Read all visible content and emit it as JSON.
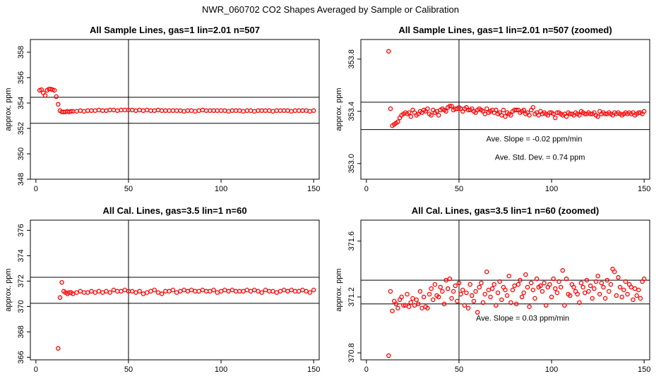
{
  "title": "NWR_060702  CO2 Shapes Averaged by Sample or Calibration",
  "chart_data": [
    {
      "type": "scatter",
      "title": "All Sample Lines, gas=1 lin=2.01 n=507",
      "ylabel": "approx. ppm",
      "xlim": [
        -3,
        153
      ],
      "ylim": [
        348,
        359
      ],
      "xticks": [
        "0",
        "50",
        "100",
        "150"
      ],
      "xtick_values": [
        0,
        50,
        100,
        150
      ],
      "yticks": [
        "348",
        "350",
        "352",
        "354",
        "356",
        "358"
      ],
      "ytick_values": [
        348,
        350,
        352,
        354,
        356,
        358
      ],
      "hlines": [
        354.45,
        352.4
      ],
      "vline": 50,
      "marker_color": "#ff0000",
      "x": [
        2,
        3,
        4,
        5,
        6,
        7,
        8,
        9,
        10,
        11,
        12,
        13,
        14,
        15,
        16,
        17,
        18,
        19,
        20,
        22,
        24,
        26,
        28,
        30,
        32,
        34,
        36,
        38,
        40,
        42,
        44,
        46,
        48,
        50,
        52,
        54,
        56,
        58,
        60,
        62,
        64,
        66,
        68,
        70,
        72,
        74,
        76,
        78,
        80,
        82,
        84,
        86,
        88,
        90,
        92,
        94,
        96,
        98,
        100,
        102,
        104,
        106,
        108,
        110,
        112,
        114,
        116,
        118,
        120,
        122,
        124,
        126,
        128,
        130,
        132,
        134,
        136,
        138,
        140,
        142,
        144,
        146,
        148,
        150
      ],
      "y": [
        355.0,
        355.05,
        354.8,
        354.6,
        355.0,
        355.1,
        355.1,
        355.05,
        355.0,
        354.5,
        353.9,
        353.4,
        353.3,
        353.3,
        353.3,
        353.35,
        353.3,
        353.35,
        353.35,
        353.35,
        353.4,
        353.35,
        353.4,
        353.4,
        353.4,
        353.45,
        353.4,
        353.4,
        353.45,
        353.45,
        353.4,
        353.45,
        353.45,
        353.45,
        353.45,
        353.4,
        353.45,
        353.4,
        353.45,
        353.4,
        353.4,
        353.45,
        353.4,
        353.4,
        353.4,
        353.4,
        353.4,
        353.4,
        353.35,
        353.4,
        353.4,
        353.35,
        353.4,
        353.45,
        353.4,
        353.4,
        353.4,
        353.4,
        353.4,
        353.4,
        353.35,
        353.4,
        353.4,
        353.4,
        353.35,
        353.4,
        353.4,
        353.35,
        353.4,
        353.4,
        353.4,
        353.4,
        353.35,
        353.4,
        353.4,
        353.4,
        353.4,
        353.35,
        353.4,
        353.4,
        353.4,
        353.4,
        353.35,
        353.4
      ]
    },
    {
      "type": "scatter",
      "title": "All Sample Lines, gas=1 lin=2.01 n=507 (zoomed)",
      "ylabel": "approx. ppm",
      "xlim": [
        -3,
        153
      ],
      "ylim": [
        352.88,
        353.95
      ],
      "xticks": [
        "0",
        "50",
        "100",
        "150"
      ],
      "xtick_values": [
        0,
        50,
        100,
        150
      ],
      "yticks": [
        "353.0",
        "353.4",
        "353.8"
      ],
      "ytick_values": [
        353.0,
        353.4,
        353.8
      ],
      "hlines": [
        353.47,
        353.26
      ],
      "vline": 50,
      "marker_color": "#ff0000",
      "annotations": [
        "Ave. Slope =  -0.02  ppm/min",
        "Ave. Std. Dev. =  0.74  ppm"
      ],
      "x": [
        12,
        13,
        14,
        15,
        16,
        17,
        18,
        19,
        20,
        21,
        22,
        23,
        24,
        25,
        26,
        27,
        28,
        29,
        30,
        31,
        32,
        33,
        34,
        35,
        36,
        37,
        38,
        39,
        40,
        41,
        42,
        43,
        44,
        45,
        46,
        47,
        48,
        49,
        50,
        51,
        52,
        53,
        54,
        55,
        56,
        57,
        58,
        59,
        60,
        61,
        62,
        63,
        64,
        65,
        66,
        67,
        68,
        69,
        70,
        71,
        72,
        73,
        74,
        75,
        76,
        77,
        78,
        79,
        80,
        81,
        82,
        83,
        84,
        85,
        86,
        87,
        88,
        89,
        90,
        91,
        92,
        93,
        94,
        95,
        96,
        97,
        98,
        99,
        100,
        101,
        102,
        103,
        104,
        105,
        106,
        107,
        108,
        109,
        110,
        111,
        112,
        113,
        114,
        115,
        116,
        117,
        118,
        119,
        120,
        121,
        122,
        123,
        124,
        125,
        126,
        127,
        128,
        129,
        130,
        131,
        132,
        133,
        134,
        135,
        136,
        137,
        138,
        139,
        140,
        141,
        142,
        143,
        144,
        145,
        146,
        147,
        148,
        149,
        150
      ],
      "y": [
        353.86,
        353.42,
        353.29,
        353.3,
        353.31,
        353.32,
        353.35,
        353.37,
        353.38,
        353.39,
        353.38,
        353.39,
        353.36,
        353.41,
        353.39,
        353.37,
        353.38,
        353.4,
        353.39,
        353.41,
        353.4,
        353.42,
        353.38,
        353.37,
        353.41,
        353.39,
        353.4,
        353.37,
        353.41,
        353.42,
        353.41,
        353.4,
        353.43,
        353.44,
        353.44,
        353.41,
        353.42,
        353.42,
        353.43,
        353.42,
        353.4,
        353.42,
        353.43,
        353.41,
        353.41,
        353.42,
        353.4,
        353.39,
        353.41,
        353.42,
        353.41,
        353.4,
        353.38,
        353.42,
        353.39,
        353.4,
        353.41,
        353.39,
        353.41,
        353.38,
        353.39,
        353.37,
        353.41,
        353.36,
        353.39,
        353.38,
        353.37,
        353.4,
        353.41,
        353.41,
        353.41,
        353.39,
        353.4,
        353.41,
        353.38,
        353.39,
        353.37,
        353.41,
        353.43,
        353.38,
        353.39,
        353.37,
        353.4,
        353.38,
        353.39,
        353.38,
        353.37,
        353.39,
        353.39,
        353.38,
        353.35,
        353.39,
        353.39,
        353.38,
        353.37,
        353.38,
        353.36,
        353.39,
        353.38,
        353.38,
        353.37,
        353.39,
        353.38,
        353.37,
        353.4,
        353.39,
        353.38,
        353.38,
        353.39,
        353.38,
        353.38,
        353.39,
        353.37,
        353.36,
        353.4,
        353.38,
        353.39,
        353.38,
        353.38,
        353.39,
        353.38,
        353.37,
        353.39,
        353.38,
        353.39,
        353.38,
        353.37,
        353.38,
        353.39,
        353.38,
        353.39,
        353.38,
        353.39,
        353.37,
        353.38,
        353.39,
        353.39,
        353.38,
        353.4
      ]
    },
    {
      "type": "scatter",
      "title": "All Cal. Lines, gas=3.5 lin=1 n=60",
      "ylabel": "approx. ppm",
      "xlim": [
        -3,
        153
      ],
      "ylim": [
        365.8,
        376.8
      ],
      "xticks": [
        "0",
        "50",
        "100",
        "150"
      ],
      "xtick_values": [
        0,
        50,
        100,
        150
      ],
      "yticks": [
        "366",
        "368",
        "370",
        "372",
        "374",
        "376"
      ],
      "ytick_values": [
        366,
        368,
        370,
        372,
        374,
        376
      ],
      "hlines": [
        372.3,
        370.25
      ],
      "vline": 50,
      "marker_color": "#ff0000",
      "x": [
        12,
        13,
        14,
        15,
        16,
        17,
        18,
        19,
        20,
        22,
        24,
        26,
        28,
        30,
        32,
        34,
        36,
        38,
        40,
        42,
        44,
        46,
        48,
        50,
        52,
        54,
        56,
        58,
        60,
        62,
        64,
        66,
        68,
        70,
        72,
        74,
        76,
        78,
        80,
        82,
        84,
        86,
        88,
        90,
        92,
        94,
        96,
        98,
        100,
        102,
        104,
        106,
        108,
        110,
        112,
        114,
        116,
        118,
        120,
        122,
        124,
        126,
        128,
        130,
        132,
        134,
        136,
        138,
        140,
        142,
        144,
        146,
        148,
        150
      ],
      "y": [
        366.7,
        370.7,
        371.9,
        371.2,
        371.1,
        371.0,
        371.1,
        371.1,
        371.0,
        371.1,
        371.2,
        371.1,
        371.1,
        371.2,
        371.1,
        371.2,
        371.1,
        371.2,
        371.1,
        371.3,
        371.2,
        371.2,
        371.3,
        371.2,
        371.2,
        371.1,
        371.2,
        371.0,
        371.1,
        371.2,
        371.3,
        371.1,
        371.0,
        371.2,
        371.2,
        371.3,
        371.1,
        371.2,
        371.3,
        371.2,
        371.3,
        371.2,
        371.2,
        371.3,
        371.2,
        371.2,
        371.3,
        371.1,
        371.2,
        371.3,
        371.2,
        371.3,
        371.2,
        371.2,
        371.2,
        371.3,
        371.2,
        371.3,
        371.2,
        371.1,
        371.3,
        371.2,
        371.2,
        371.1,
        371.2,
        371.3,
        371.2,
        371.3,
        371.2,
        371.2,
        371.3,
        371.2,
        371.1,
        371.3
      ]
    },
    {
      "type": "scatter",
      "title": "All Cal. Lines, gas=3.5 lin=1 n=60 (zoomed)",
      "ylabel": "approx. ppm",
      "xlim": [
        -3,
        153
      ],
      "ylim": [
        370.75,
        371.75
      ],
      "xticks": [
        "0",
        "50",
        "100",
        "150"
      ],
      "xtick_values": [
        0,
        50,
        100,
        150
      ],
      "yticks": [
        "370.8",
        "371.2",
        "371.6"
      ],
      "ytick_values": [
        370.8,
        371.2,
        371.6
      ],
      "hlines": [
        371.32,
        371.15
      ],
      "vline": 50,
      "marker_color": "#ff0000",
      "annotations": [
        "Ave. Slope =  0.03  ppm/min"
      ],
      "x": [
        12,
        13,
        14,
        15,
        16,
        17,
        18,
        19,
        20,
        21,
        22,
        23,
        24,
        25,
        26,
        27,
        28,
        29,
        30,
        31,
        32,
        33,
        34,
        35,
        36,
        37,
        38,
        39,
        40,
        41,
        42,
        43,
        44,
        45,
        46,
        47,
        48,
        49,
        50,
        51,
        52,
        53,
        54,
        55,
        56,
        57,
        58,
        59,
        60,
        61,
        62,
        63,
        64,
        65,
        66,
        67,
        68,
        69,
        70,
        71,
        72,
        73,
        74,
        75,
        76,
        77,
        78,
        79,
        80,
        81,
        82,
        83,
        84,
        85,
        86,
        87,
        88,
        89,
        90,
        91,
        92,
        93,
        94,
        95,
        96,
        97,
        98,
        99,
        100,
        101,
        102,
        103,
        104,
        105,
        106,
        107,
        108,
        109,
        110,
        111,
        112,
        113,
        114,
        115,
        116,
        117,
        118,
        119,
        120,
        121,
        122,
        123,
        124,
        125,
        126,
        127,
        128,
        129,
        130,
        131,
        132,
        133,
        134,
        135,
        136,
        137,
        138,
        139,
        140,
        141,
        142,
        143,
        144,
        145,
        146,
        147,
        148,
        149,
        150
      ],
      "y": [
        370.78,
        371.24,
        371.1,
        371.17,
        371.15,
        371.12,
        371.18,
        371.2,
        371.14,
        371.14,
        371.22,
        371.13,
        371.16,
        371.19,
        371.14,
        371.18,
        371.15,
        371.24,
        371.12,
        371.2,
        371.13,
        371.12,
        371.22,
        371.26,
        371.18,
        371.29,
        371.21,
        371.2,
        371.27,
        371.24,
        371.15,
        371.32,
        371.26,
        371.33,
        371.19,
        371.24,
        371.28,
        371.17,
        371.3,
        371.22,
        371.25,
        371.14,
        371.23,
        371.12,
        371.29,
        371.21,
        371.17,
        371.24,
        371.09,
        371.27,
        371.3,
        371.16,
        371.22,
        371.38,
        371.25,
        371.2,
        371.26,
        371.29,
        371.14,
        371.23,
        371.31,
        371.18,
        371.27,
        371.25,
        371.21,
        371.35,
        371.16,
        371.25,
        371.28,
        371.15,
        371.29,
        371.32,
        371.2,
        371.23,
        371.36,
        371.27,
        371.13,
        371.3,
        371.25,
        371.19,
        371.33,
        371.27,
        371.28,
        371.24,
        371.3,
        371.14,
        371.27,
        371.29,
        371.2,
        371.33,
        371.26,
        371.23,
        371.31,
        371.27,
        371.39,
        371.14,
        371.33,
        371.22,
        371.21,
        371.29,
        371.27,
        371.24,
        371.22,
        371.16,
        371.3,
        371.27,
        371.23,
        371.32,
        371.24,
        371.28,
        371.19,
        371.26,
        371.31,
        371.35,
        371.22,
        371.3,
        371.27,
        371.19,
        371.32,
        371.24,
        371.29,
        371.4,
        371.38,
        371.21,
        371.34,
        371.27,
        371.2,
        371.25,
        371.31,
        371.22,
        371.29,
        371.27,
        371.18,
        371.26,
        371.21,
        371.25,
        371.19,
        371.31,
        371.33
      ]
    }
  ]
}
